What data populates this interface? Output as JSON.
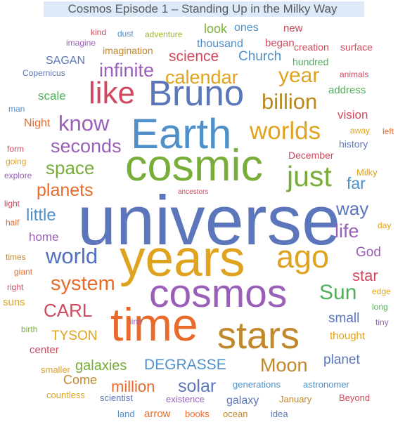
{
  "chart_data": {
    "type": "wordcloud",
    "title": "Cosmos Episode 1 – Standing Up in the Milky Way",
    "words": [
      {
        "text": "universe",
        "weight": 100,
        "color": "#5b76ba"
      },
      {
        "text": "years",
        "weight": 86,
        "color": "#e0a31f"
      },
      {
        "text": "cosmic",
        "weight": 76,
        "color": "#79ad3a"
      },
      {
        "text": "Earth",
        "weight": 72,
        "color": "#4f90c9"
      },
      {
        "text": "time",
        "weight": 70,
        "color": "#e86b2b"
      },
      {
        "text": "cosmos",
        "weight": 66,
        "color": "#9a5fb8"
      },
      {
        "text": "stars",
        "weight": 62,
        "color": "#c1872a"
      },
      {
        "text": "Bruno",
        "weight": 58,
        "color": "#5b76ba"
      },
      {
        "text": "ago",
        "weight": 52,
        "color": "#e0a31f"
      },
      {
        "text": "like",
        "weight": 50,
        "color": "#cf4a5e"
      },
      {
        "text": "just",
        "weight": 44,
        "color": "#79ad3a"
      },
      {
        "text": "worlds",
        "weight": 40,
        "color": "#e0a31f"
      },
      {
        "text": "world",
        "weight": 36,
        "color": "#4f6fc0"
      },
      {
        "text": "Sun",
        "weight": 34,
        "color": "#53ae5e"
      },
      {
        "text": "know",
        "weight": 32,
        "color": "#9a5fb8"
      },
      {
        "text": "billion",
        "weight": 31,
        "color": "#b9881f"
      },
      {
        "text": "year",
        "weight": 31,
        "color": "#e0a31f"
      },
      {
        "text": "system",
        "weight": 30,
        "color": "#e86b2b"
      },
      {
        "text": "Moon",
        "weight": 29,
        "color": "#c1872a"
      },
      {
        "text": "calendar",
        "weight": 28,
        "color": "#e0a31f"
      },
      {
        "text": "seconds",
        "weight": 27,
        "color": "#9a5fb8"
      },
      {
        "text": "solar",
        "weight": 27,
        "color": "#5b76ba"
      },
      {
        "text": "way",
        "weight": 27,
        "color": "#5b76ba"
      },
      {
        "text": "infinite",
        "weight": 26,
        "color": "#9a5fb8"
      },
      {
        "text": "life",
        "weight": 26,
        "color": "#9a5fb8"
      },
      {
        "text": "CARL",
        "weight": 26,
        "color": "#cf4a5e"
      },
      {
        "text": "far",
        "weight": 25,
        "color": "#4f90c9"
      },
      {
        "text": "space",
        "weight": 25,
        "color": "#79ad3a"
      },
      {
        "text": "planets",
        "weight": 24,
        "color": "#e86b2b"
      },
      {
        "text": "little",
        "weight": 24,
        "color": "#4f90c9"
      },
      {
        "text": "star",
        "weight": 22,
        "color": "#cf4a5e"
      },
      {
        "text": "million",
        "weight": 22,
        "color": "#e86b2b"
      },
      {
        "text": "DEGRASSE",
        "weight": 21,
        "color": "#4f90c9"
      },
      {
        "text": "science",
        "weight": 20,
        "color": "#cf4a5e"
      },
      {
        "text": "galaxies",
        "weight": 20,
        "color": "#79ad3a"
      },
      {
        "text": "TYSON",
        "weight": 20,
        "color": "#e0a31f"
      },
      {
        "text": "God",
        "weight": 19,
        "color": "#9a5fb8"
      },
      {
        "text": "small",
        "weight": 19,
        "color": "#5b76ba"
      },
      {
        "text": "planet",
        "weight": 18,
        "color": "#5b76ba"
      },
      {
        "text": "Church",
        "weight": 18,
        "color": "#4f90c9"
      },
      {
        "text": "look",
        "weight": 18,
        "color": "#79ad3a"
      },
      {
        "text": "Come",
        "weight": 18,
        "color": "#c1872a"
      },
      {
        "text": "home",
        "weight": 17,
        "color": "#9a5fb8"
      },
      {
        "text": "scale",
        "weight": 17,
        "color": "#53ae5e"
      },
      {
        "text": "vision",
        "weight": 17,
        "color": "#cf4a5e"
      },
      {
        "text": "thousand",
        "weight": 16,
        "color": "#4f90c9"
      },
      {
        "text": "ones",
        "weight": 16,
        "color": "#4f90c9"
      },
      {
        "text": "Night",
        "weight": 16,
        "color": "#e86b2b"
      },
      {
        "text": "SAGAN",
        "weight": 16,
        "color": "#5b76ba"
      },
      {
        "text": "galaxy",
        "weight": 16,
        "color": "#5b76ba"
      },
      {
        "text": "began",
        "weight": 15,
        "color": "#cf4a5e"
      },
      {
        "text": "new",
        "weight": 15,
        "color": "#cf4a5e"
      },
      {
        "text": "arrow",
        "weight": 15,
        "color": "#e86b2b"
      },
      {
        "text": "center",
        "weight": 15,
        "color": "#cf4a5e"
      },
      {
        "text": "suns",
        "weight": 15,
        "color": "#e0a31f"
      },
      {
        "text": "address",
        "weight": 15,
        "color": "#53ae5e"
      },
      {
        "text": "thought",
        "weight": 15,
        "color": "#e0a31f"
      },
      {
        "text": "history",
        "weight": 14,
        "color": "#5b76ba"
      },
      {
        "text": "hundred",
        "weight": 14,
        "color": "#53ae5e"
      },
      {
        "text": "December",
        "weight": 14,
        "color": "#cf4a5e"
      },
      {
        "text": "imagination",
        "weight": 14,
        "color": "#c1872a"
      },
      {
        "text": "creation",
        "weight": 14,
        "color": "#cf4a5e"
      },
      {
        "text": "surface",
        "weight": 14,
        "color": "#cf4a5e"
      },
      {
        "text": "Milky",
        "weight": 13,
        "color": "#e0a31f"
      },
      {
        "text": "generations",
        "weight": 13,
        "color": "#4f90c9"
      },
      {
        "text": "astronomer",
        "weight": 13,
        "color": "#4f90c9"
      },
      {
        "text": "Beyond",
        "weight": 13,
        "color": "#cf4a5e"
      },
      {
        "text": "January",
        "weight": 13,
        "color": "#c1872a"
      },
      {
        "text": "idea",
        "weight": 13,
        "color": "#5b76ba"
      },
      {
        "text": "ocean",
        "weight": 13,
        "color": "#c1872a"
      },
      {
        "text": "books",
        "weight": 13,
        "color": "#e86b2b"
      },
      {
        "text": "land",
        "weight": 13,
        "color": "#4f90c9"
      },
      {
        "text": "scientist",
        "weight": 13,
        "color": "#5b76ba"
      },
      {
        "text": "existence",
        "weight": 13,
        "color": "#9a5fb8"
      },
      {
        "text": "countless",
        "weight": 13,
        "color": "#e0a31f"
      },
      {
        "text": "smaller",
        "weight": 13,
        "color": "#e0a31f"
      },
      {
        "text": "birth",
        "weight": 12,
        "color": "#79ad3a"
      },
      {
        "text": "long",
        "weight": 12,
        "color": "#53ae5e"
      },
      {
        "text": "tiny",
        "weight": 12,
        "color": "#9a5fb8"
      },
      {
        "text": "edge",
        "weight": 12,
        "color": "#e0a31f"
      },
      {
        "text": "line",
        "weight": 12,
        "color": "#9a5fb8"
      },
      {
        "text": "right",
        "weight": 12,
        "color": "#cf4a5e"
      },
      {
        "text": "giant",
        "weight": 12,
        "color": "#e86b2b"
      },
      {
        "text": "times",
        "weight": 12,
        "color": "#c1872a"
      },
      {
        "text": "half",
        "weight": 12,
        "color": "#e86b2b"
      },
      {
        "text": "light",
        "weight": 12,
        "color": "#cf4a5e"
      },
      {
        "text": "day",
        "weight": 12,
        "color": "#e0a31f"
      },
      {
        "text": "Copernicus",
        "weight": 12,
        "color": "#5b76ba"
      },
      {
        "text": "imagine",
        "weight": 12,
        "color": "#9a5fb8"
      },
      {
        "text": "kind",
        "weight": 12,
        "color": "#cf4a5e"
      },
      {
        "text": "dust",
        "weight": 12,
        "color": "#4f90c9"
      },
      {
        "text": "adventure",
        "weight": 12,
        "color": "#a1b52c"
      },
      {
        "text": "man",
        "weight": 12,
        "color": "#4f90c9"
      },
      {
        "text": "form",
        "weight": 12,
        "color": "#cf4a5e"
      },
      {
        "text": "going",
        "weight": 12,
        "color": "#e0a31f"
      },
      {
        "text": "explore",
        "weight": 12,
        "color": "#9a5fb8"
      },
      {
        "text": "animals",
        "weight": 12,
        "color": "#cf4a5e"
      },
      {
        "text": "away",
        "weight": 12,
        "color": "#e0a31f"
      },
      {
        "text": "left",
        "weight": 12,
        "color": "#e86b2b"
      },
      {
        "text": "ancestors",
        "weight": 10,
        "color": "#cf4a5e"
      }
    ]
  }
}
